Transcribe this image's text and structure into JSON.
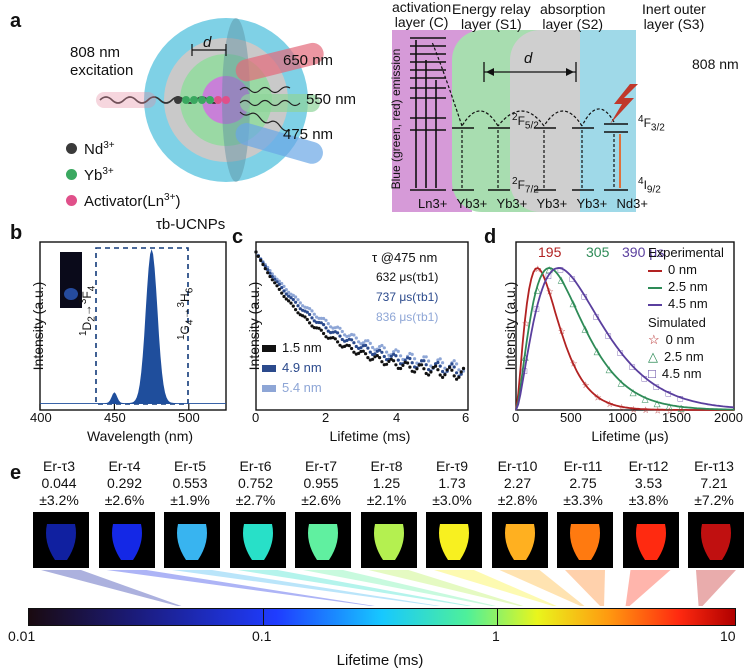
{
  "panel_a": {
    "letter": "a",
    "excitation": "808 nm\nexcitation",
    "distance_label": "d",
    "emissions": [
      "650 nm",
      "550 nm",
      "475 nm"
    ],
    "legend": [
      {
        "ion": "Nd",
        "sup": "3+",
        "color": "#3a3a3a"
      },
      {
        "ion": "Yb",
        "sup": "3+",
        "color": "#3aa860"
      },
      {
        "ion": "Activator(Ln",
        "sup": "3+",
        "tail": ")",
        "color": "#e0508a"
      }
    ],
    "layers": [
      {
        "text": "activation\nlayer (C)",
        "color": "#d69ad8"
      },
      {
        "text": "Energy relay\nlayer (S1)",
        "color": "#a8ddb0"
      },
      {
        "text": "absorption\nlayer (S2)",
        "color": "#cfcfcf"
      },
      {
        "text": "Inert outer\nlayer (S3)",
        "color": "#9fd9e8"
      }
    ],
    "vertical_label": "Blue (green, red) emission",
    "pump": "808 nm",
    "levels": {
      "f52": "2F5/2",
      "f72": "2F7/2",
      "f32": "4F3/2",
      "i92": "4I9/2"
    },
    "ions_bottom": [
      "Ln3+",
      "Yb3+",
      "Yb3+",
      "Yb3+",
      "Yb3+",
      "Nd3+"
    ]
  },
  "panel_b": {
    "letter": "b",
    "title": "τb-UCNPs",
    "chart_data": {
      "type": "area",
      "xlabel": "Wavelength (nm)",
      "ylabel": "Intensity (a.u.)",
      "xlim": [
        400,
        525
      ],
      "xticks": [
        400,
        450,
        500
      ],
      "peaks": [
        {
          "x": 450,
          "y": 0.07
        },
        {
          "x": 475,
          "y": 1.0
        }
      ],
      "annotations": [
        "1D2→3F4",
        "1G4→3H6"
      ]
    }
  },
  "panel_c": {
    "letter": "c",
    "chart_data": {
      "type": "scatter",
      "xlabel": "Lifetime (ms)",
      "ylabel": "Intensity (a.u.)",
      "xlim": [
        0,
        6
      ],
      "xticks": [
        0,
        2,
        4,
        6
      ],
      "legend_title": "τ @475 nm",
      "series": [
        {
          "name": "1.5 nm",
          "value": "632 μs(τb1)",
          "color": "#111111",
          "tau": 0.632
        },
        {
          "name": "4.9 nm",
          "value": "737 μs(τb1)",
          "color": "#2b4a8c",
          "tau": 0.737
        },
        {
          "name": "5.4 nm",
          "value": "836 μs(τb1)",
          "color": "#8ea6d6",
          "tau": 0.836
        }
      ]
    }
  },
  "panel_d": {
    "letter": "d",
    "chart_data": {
      "type": "line",
      "xlabel": "Lifetime (μs)",
      "ylabel": "Intensity (a.u.)",
      "xlim": [
        0,
        2000
      ],
      "xticks": [
        0,
        500,
        1000,
        1500,
        2000
      ],
      "peaks_label": [
        "195",
        "305",
        "390 μs"
      ],
      "legend_exp_title": "Experimental",
      "legend_sim_title": "Simulated",
      "series": [
        {
          "name": "0 nm",
          "color": "#b22222",
          "peak": 195,
          "sim_marker": "☆"
        },
        {
          "name": "2.5 nm",
          "color": "#2e8b57",
          "peak": 305,
          "sim_marker": "△"
        },
        {
          "name": "4.5 nm",
          "color": "#5a3f9e",
          "peak": 390,
          "sim_marker": "□"
        }
      ]
    }
  },
  "panel_e": {
    "letter": "e",
    "tiles": [
      {
        "name": "Er-τ3",
        "value": "0.044",
        "err": "±3.2%",
        "color": "#1020a0",
        "pos": 0.044
      },
      {
        "name": "Er-τ4",
        "value": "0.292",
        "err": "±2.6%",
        "color": "#1428e6",
        "pos": 0.292
      },
      {
        "name": "Er-τ5",
        "value": "0.553",
        "err": "±1.9%",
        "color": "#38b4f0",
        "pos": 0.553
      },
      {
        "name": "Er-τ6",
        "value": "0.752",
        "err": "±2.7%",
        "color": "#28e0c8",
        "pos": 0.752
      },
      {
        "name": "Er-τ7",
        "value": "0.955",
        "err": "±2.6%",
        "color": "#60f0a0",
        "pos": 0.955
      },
      {
        "name": "Er-τ8",
        "value": "1.25",
        "err": "±2.1%",
        "color": "#b4f050",
        "pos": 1.25
      },
      {
        "name": "Er-τ9",
        "value": "1.73",
        "err": "±3.0%",
        "color": "#f8f020",
        "pos": 1.73
      },
      {
        "name": "Er-τ10",
        "value": "2.27",
        "err": "±2.8%",
        "color": "#ffb020",
        "pos": 2.27
      },
      {
        "name": "Er-τ11",
        "value": "2.75",
        "err": "±3.3%",
        "color": "#ff7a10",
        "pos": 2.75
      },
      {
        "name": "Er-τ12",
        "value": "3.53",
        "err": "±3.8%",
        "color": "#ff2a10",
        "pos": 3.53
      },
      {
        "name": "Er-τ13",
        "value": "7.21",
        "err": "±7.2%",
        "color": "#c01010",
        "pos": 7.21
      }
    ],
    "colorbar": {
      "ticks": [
        "0.01",
        "0.1",
        "1",
        "10"
      ],
      "xlabel": "Lifetime (ms)",
      "range": [
        0.01,
        10
      ]
    }
  }
}
